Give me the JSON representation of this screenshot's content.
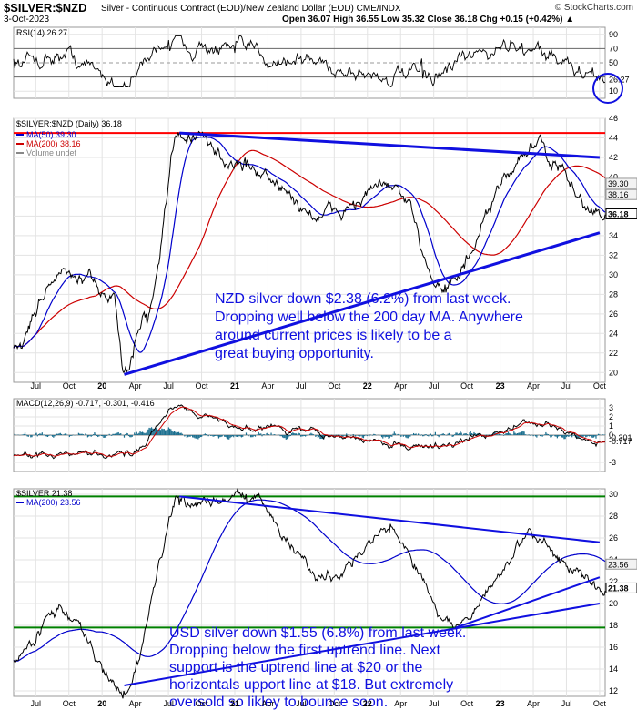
{
  "header": {
    "symbol": "$SILVER:$NZD",
    "subtitle": "Silver - Continuous Contract (EOD)/New Zealand Dollar (EOD)  CME/INDX",
    "brand": "© StockCharts.com",
    "date": "3-Oct-2023",
    "ohlc": "Open 36.07  High 36.55  Low 35.32  Close 36.18  Chg +0.15 (+0.42%) ▲"
  },
  "colors": {
    "price": "#000000",
    "ma50": "#0000cc",
    "ma200": "#cc0000",
    "trendline": "#1010e0",
    "resistance": "#ff0000",
    "support": "#008000",
    "macd": "#000000",
    "signal": "#cc0000",
    "histogram": "#1a6e8e",
    "annotation": "#1010e0",
    "oversold_circle": "#1010e0"
  },
  "x_axis": {
    "labels": [
      "Jul",
      "Oct",
      "20",
      "Apr",
      "Jul",
      "Oct",
      "21",
      "Apr",
      "Jul",
      "Oct",
      "22",
      "Apr",
      "Jul",
      "Oct",
      "23",
      "Apr",
      "Jul",
      "Oct"
    ],
    "bold_years": [
      "20",
      "21",
      "22",
      "23"
    ]
  },
  "chart_data": [
    {
      "type": "line",
      "panel": "rsi",
      "legend": "RSI(14) 26.27",
      "ylim": [
        0,
        100
      ],
      "guide_levels": [
        70,
        50,
        30
      ],
      "y_ticks": [
        "90",
        "70",
        "50",
        "26.27",
        "10"
      ],
      "last_value": 26.27,
      "key_points": [
        {
          "x": "2019-06",
          "y": 52
        },
        {
          "x": "2019-09",
          "y": 62
        },
        {
          "x": "2020-03",
          "y": 22
        },
        {
          "x": "2020-07",
          "y": 82
        },
        {
          "x": "2021-01",
          "y": 64
        },
        {
          "x": "2022-06",
          "y": 28
        },
        {
          "x": "2023-03",
          "y": 78
        },
        {
          "x": "2023-10",
          "y": 26.27
        }
      ]
    },
    {
      "type": "line",
      "panel": "silver_nzd",
      "legend": "$SILVER:$NZD (Daily) 36.18",
      "series": [
        {
          "name": "MA(50) 39.30",
          "last": 39.3
        },
        {
          "name": "MA(200) 38.16",
          "last": 38.16
        },
        {
          "name": "Volume undef"
        }
      ],
      "ylim": [
        19,
        46
      ],
      "y_ticks": [
        46,
        44,
        42,
        40,
        38,
        36,
        34,
        32,
        30,
        28,
        26,
        24,
        22,
        20
      ],
      "last_labels": [
        "39.30",
        "38.16",
        "36.18"
      ],
      "resistance_level": 44.5,
      "trendlines": [
        {
          "from": {
            "x": "2020-08",
            "y": 44.5
          },
          "to": {
            "x": "2023-10",
            "y": 42.0
          }
        },
        {
          "from": {
            "x": "2020-03",
            "y": 19.8
          },
          "to": {
            "x": "2023-10",
            "y": 34.3
          }
        }
      ],
      "key_points": [
        {
          "x": "2019-05",
          "y": 22.5
        },
        {
          "x": "2019-09",
          "y": 30
        },
        {
          "x": "2020-02",
          "y": 28
        },
        {
          "x": "2020-03",
          "y": 20
        },
        {
          "x": "2020-05",
          "y": 26
        },
        {
          "x": "2020-08",
          "y": 44.5
        },
        {
          "x": "2021-02",
          "y": 41
        },
        {
          "x": "2021-09",
          "y": 36
        },
        {
          "x": "2022-03",
          "y": 39
        },
        {
          "x": "2022-08",
          "y": 29
        },
        {
          "x": "2023-04",
          "y": 43
        },
        {
          "x": "2023-10",
          "y": 36.18
        }
      ],
      "annotation": "NZD silver down $2.38 (6.2%) from last week. Dropping well below the 200 day MA. Anywhere around current prices is likely to be a great buying opportunity."
    },
    {
      "type": "line",
      "panel": "macd",
      "legend": "MACD(12,26,9) -0.717, -0.301, -0.416",
      "ylim": [
        -4,
        4
      ],
      "y_ticks": [
        "3",
        "2",
        "1",
        "0",
        "-0.301",
        "-0.717",
        "-3"
      ],
      "series": [
        {
          "name": "MACD",
          "last": -0.717
        },
        {
          "name": "Signal",
          "last": -0.301
        },
        {
          "name": "Histogram",
          "last": -0.416
        }
      ],
      "key_points": [
        {
          "x": "2020-03",
          "y": -2.3
        },
        {
          "x": "2020-08",
          "y": 3.2
        },
        {
          "x": "2021-01",
          "y": 1.0
        },
        {
          "x": "2022-07",
          "y": -1.2
        },
        {
          "x": "2023-04",
          "y": 1.2
        },
        {
          "x": "2023-10",
          "y": -0.717
        }
      ]
    },
    {
      "type": "line",
      "panel": "silver_usd",
      "legend": "$SILVER 21.38",
      "series": [
        {
          "name": "MA(200) 23.56",
          "last": 23.56
        }
      ],
      "ylim": [
        11.5,
        30.5
      ],
      "y_ticks": [
        30,
        28,
        26,
        24,
        22,
        20,
        18,
        16,
        14,
        12
      ],
      "last_labels": [
        "23.56",
        "21.38"
      ],
      "resistance_level": 29.8,
      "support_level": 17.8,
      "trendlines": [
        {
          "from": {
            "x": "2020-08",
            "y": 29.8
          },
          "to": {
            "x": "2023-10",
            "y": 25.6
          }
        },
        {
          "from": {
            "x": "2022-09",
            "y": 17.8
          },
          "to": {
            "x": "2023-10",
            "y": 22.4
          }
        },
        {
          "from": {
            "x": "2020-03",
            "y": 12.5
          },
          "to": {
            "x": "2023-10",
            "y": 20.0
          }
        }
      ],
      "key_points": [
        {
          "x": "2019-05",
          "y": 14.8
        },
        {
          "x": "2019-09",
          "y": 19.5
        },
        {
          "x": "2020-03",
          "y": 12
        },
        {
          "x": "2020-08",
          "y": 29
        },
        {
          "x": "2021-02",
          "y": 30
        },
        {
          "x": "2021-09",
          "y": 22.5
        },
        {
          "x": "2022-03",
          "y": 26.5
        },
        {
          "x": "2022-09",
          "y": 18
        },
        {
          "x": "2023-04",
          "y": 26
        },
        {
          "x": "2023-10",
          "y": 21.38
        }
      ],
      "annotation": "USD silver down $1.55 (6.8%) from last week. Dropping below the first uptrend line. Next support is the uptrend line at $20 or the horizontals upport line at $18. But extremely oversold so likley to bounce soon."
    }
  ]
}
